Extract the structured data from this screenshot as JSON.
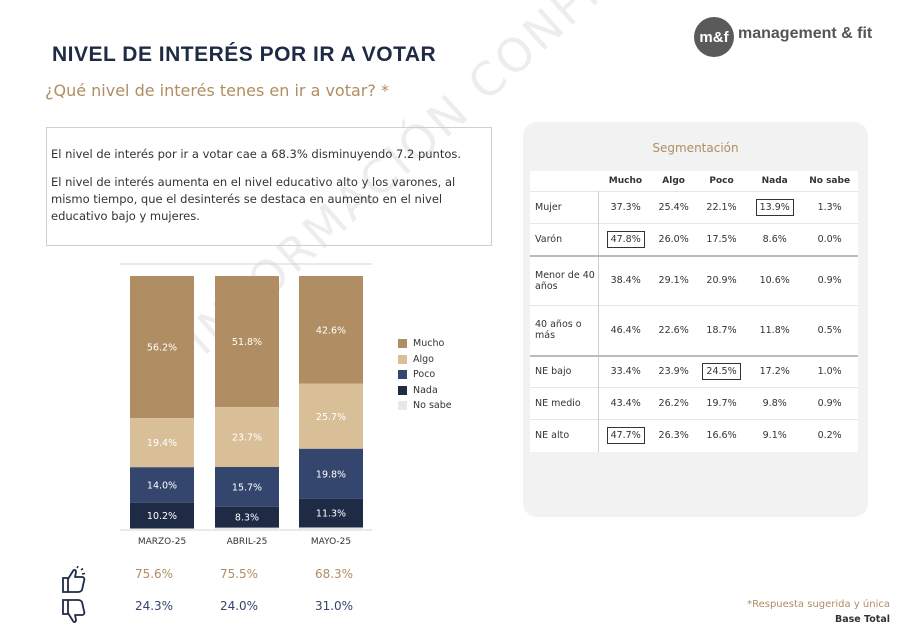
{
  "header": {
    "title": "NIVEL DE INTERÉS POR IR A VOTAR",
    "subtitle": "¿Qué nivel de interés tenes en ir a votar? *",
    "logo_mark": "m&f",
    "logo_name": "management & fit"
  },
  "insights": {
    "p1": "El nivel de interés por ir a votar cae a 68.3% disminuyendo 7.2 puntos.",
    "p2": "El nivel de interés aumenta en el nivel educativo alto y los varones, al mismo tiempo, que el desinterés se destaca en aumento en el nivel educativo bajo y mujeres."
  },
  "colors": {
    "Mucho": "#b08d62",
    "Algo": "#d9bf98",
    "Poco": "#34456e",
    "Nada": "#1f2a44",
    "No sabe": "#e8e8e8"
  },
  "chart_data": {
    "type": "bar",
    "stacked": true,
    "categories": [
      "MARZO-25",
      "ABRIL-25",
      "MAYO-25"
    ],
    "series": [
      {
        "name": "Mucho",
        "values": [
          56.2,
          51.8,
          42.6
        ],
        "labels": [
          "56.2%",
          "51.8%",
          "42.6%"
        ]
      },
      {
        "name": "Algo",
        "values": [
          19.4,
          23.7,
          25.7
        ],
        "labels": [
          "19.4%",
          "23.7%",
          "25.7%"
        ]
      },
      {
        "name": "Poco",
        "values": [
          14.0,
          15.7,
          19.8
        ],
        "labels": [
          "14.0%",
          "15.7%",
          "19.8%"
        ]
      },
      {
        "name": "Nada",
        "values": [
          10.2,
          8.3,
          11.3
        ],
        "labels": [
          "10.2%",
          "8.3%",
          "11.3%"
        ]
      },
      {
        "name": "No sabe",
        "values": [
          0.2,
          0.5,
          0.6
        ],
        "labels": [
          "",
          "",
          ""
        ]
      }
    ],
    "ylim": [
      0,
      100
    ],
    "legend_position": "right"
  },
  "summary": {
    "positive": [
      "75.6%",
      "75.5%",
      "68.3%"
    ],
    "negative": [
      "24.3%",
      "24.0%",
      "31.0%"
    ],
    "positive_color": "#b08d62",
    "negative_color": "#34456e"
  },
  "segmentation": {
    "title": "Segmentación",
    "columns": [
      "Mucho",
      "Algo",
      "Poco",
      "Nada",
      "No sabe"
    ],
    "rows": [
      {
        "label": "Mujer",
        "values": [
          "37.3%",
          "25.4%",
          "22.1%",
          "13.9%",
          "1.3%"
        ],
        "boxed": [
          3
        ],
        "group_start": false
      },
      {
        "label": "Varón",
        "values": [
          "47.8%",
          "26.0%",
          "17.5%",
          "8.6%",
          "0.0%"
        ],
        "boxed": [
          0
        ],
        "group_start": false
      },
      {
        "label": "Menor de 40 años",
        "values": [
          "38.4%",
          "29.1%",
          "20.9%",
          "10.6%",
          "0.9%"
        ],
        "boxed": [],
        "group_start": true
      },
      {
        "label": "40 años o más",
        "values": [
          "46.4%",
          "22.6%",
          "18.7%",
          "11.8%",
          "0.5%"
        ],
        "boxed": [],
        "group_start": false
      },
      {
        "label": "NE bajo",
        "values": [
          "33.4%",
          "23.9%",
          "24.5%",
          "17.2%",
          "1.0%"
        ],
        "boxed": [
          2
        ],
        "group_start": true
      },
      {
        "label": "NE medio",
        "values": [
          "43.4%",
          "26.2%",
          "19.7%",
          "9.8%",
          "0.9%"
        ],
        "boxed": [],
        "group_start": false
      },
      {
        "label": "NE alto",
        "values": [
          "47.7%",
          "26.3%",
          "16.6%",
          "9.1%",
          "0.2%"
        ],
        "boxed": [
          0
        ],
        "group_start": false
      }
    ]
  },
  "footer": {
    "note": "*Respuesta sugerida y única",
    "base": "Base Total"
  },
  "watermark": "INFORMACIÓN CONFIDENCIAL"
}
